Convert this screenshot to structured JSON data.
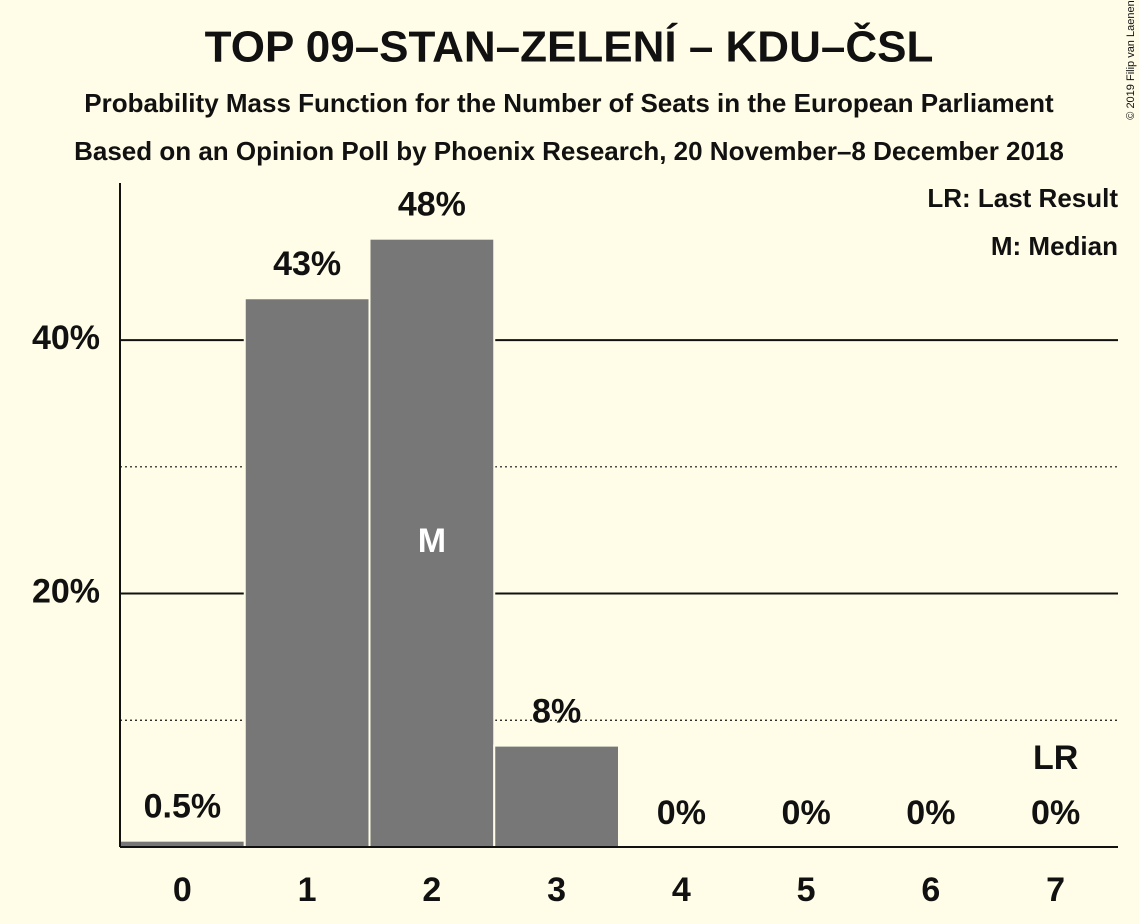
{
  "chart_data": {
    "type": "bar",
    "title": "TOP 09–STAN–ZELENÍ – KDU–ČSL",
    "subtitle": "Probability Mass Function for the Number of Seats in the European Parliament",
    "subtitle2": "Based on an Opinion Poll by Phoenix Research, 20 November–8 December 2018",
    "copyright": "© 2019 Filip van Laenen",
    "categories": [
      "0",
      "1",
      "2",
      "3",
      "4",
      "5",
      "6",
      "7"
    ],
    "values": [
      0.5,
      43.3,
      48,
      8,
      0,
      0,
      0,
      0
    ],
    "value_labels": [
      "0.5%",
      "43%",
      "48%",
      "8%",
      "0%",
      "0%",
      "0%",
      "0%"
    ],
    "color": "#777777",
    "ylim": [
      0,
      52
    ],
    "yticks": [
      {
        "value": 20,
        "label": "20%"
      },
      {
        "value": 40,
        "label": "40%"
      }
    ],
    "minor_yticks": [
      10,
      30
    ],
    "grid": true,
    "legend": [
      "LR: Last Result",
      "M: Median"
    ],
    "annotations": [
      {
        "text": "M",
        "x": "2"
      },
      {
        "text": "LR",
        "x": "7"
      }
    ]
  }
}
